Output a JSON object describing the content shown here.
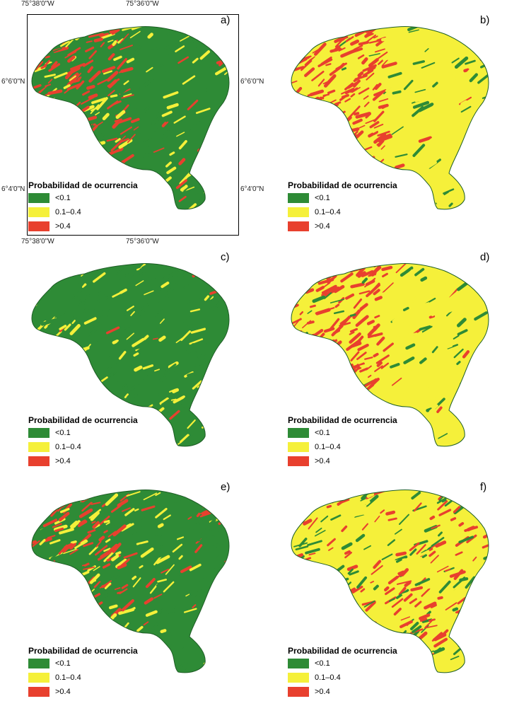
{
  "coordinates": {
    "top_left": "75°38'0\"W",
    "top_right": "75°36'0\"W",
    "bottom_left": "75°38'0\"W",
    "bottom_right": "75°36'0\"W",
    "left_top": "6°6'0\"N",
    "right_top": "6°6'0\"N",
    "left_bottom": "6°4'0\"N",
    "right_bottom": "6°4'0\"N"
  },
  "legend": {
    "title": "Probabilidad de ocurrencia",
    "items": [
      {
        "label": "<0.1",
        "color": "#2e8b36"
      },
      {
        "label": "0.1–0.4",
        "color": "#f5f03a"
      },
      {
        "label": ">0.4",
        "color": "#e8402e"
      }
    ]
  },
  "panels": [
    {
      "label": "a)",
      "base_color": "#2e8b36",
      "mix": {
        "green": 0.45,
        "yellow": 0.2,
        "red": 0.35
      }
    },
    {
      "label": "b)",
      "base_color": "#f5f03a",
      "mix": {
        "green": 0.08,
        "yellow": 0.62,
        "red": 0.3
      }
    },
    {
      "label": "c)",
      "base_color": "#2e8b36",
      "mix": {
        "green": 0.85,
        "yellow": 0.13,
        "red": 0.02
      }
    },
    {
      "label": "d)",
      "base_color": "#f5f03a",
      "mix": {
        "green": 0.08,
        "yellow": 0.55,
        "red": 0.37
      }
    },
    {
      "label": "e)",
      "base_color": "#2e8b36",
      "mix": {
        "green": 0.55,
        "yellow": 0.15,
        "red": 0.3
      }
    },
    {
      "label": "f)",
      "base_color": "#f5f03a",
      "mix": {
        "green": 0.15,
        "yellow": 0.6,
        "red": 0.25
      }
    }
  ]
}
